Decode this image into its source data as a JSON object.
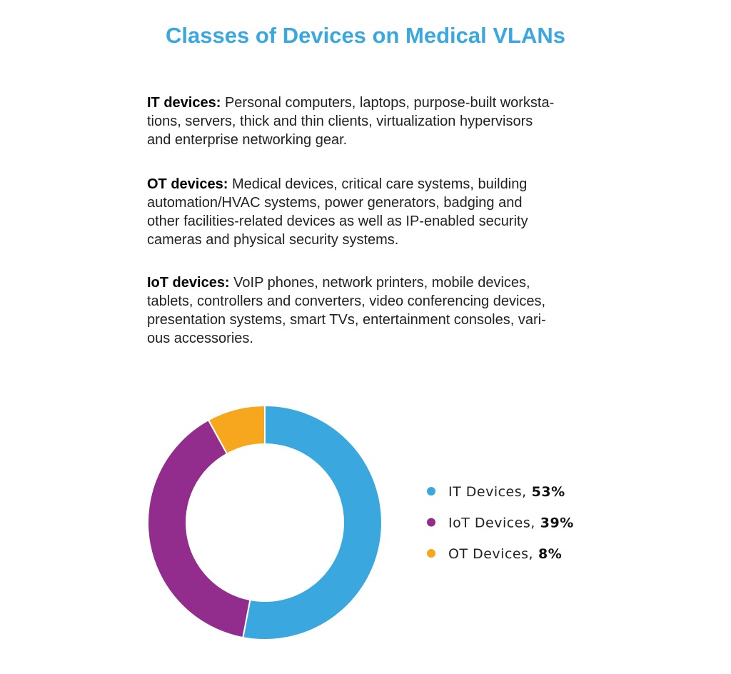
{
  "descriptions": [
    {
      "term": "IT devices:",
      "lines": [
        " Personal computers, laptops, purpose-built worksta-",
        "tions, servers, thick and thin clients, virtualization hypervisors",
        "and enterprise networking gear."
      ]
    },
    {
      "term": "OT devices:",
      "lines": [
        " Medical devices, critical care systems, building",
        "automation/HVAC systems, power generators, badging and",
        "other facilities-related devices as well as IP-enabled security",
        "cameras and physical security systems."
      ]
    },
    {
      "term": "IoT devices:",
      "lines": [
        " VoIP phones, network printers, mobile devices,",
        "tablets, controllers and converters, video conferencing devices,",
        "presentation systems, smart TVs, entertainment consoles, vari-",
        "ous accessories."
      ]
    }
  ],
  "chart_data": {
    "type": "donut",
    "title": "Classes of Devices on Medical VLANs",
    "categories": [
      "IT Devices,",
      "IoT Devices,",
      "OT Devices,"
    ],
    "values": [
      53,
      39,
      8
    ],
    "value_labels": [
      "53%",
      "39%",
      "8%"
    ],
    "colors": [
      "#3aa8df",
      "#922d8e",
      "#f6a71e"
    ],
    "legend": "right"
  }
}
